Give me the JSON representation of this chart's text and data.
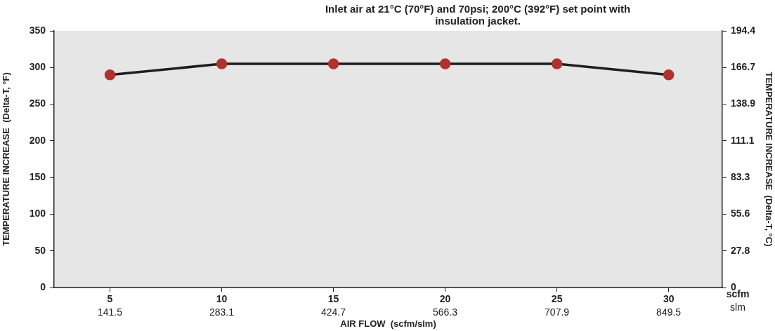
{
  "chart_data": {
    "type": "line",
    "title": "Inlet air at 21°C (70°F) and 70psi;  200°C (392°F) set point with insulation jacket.",
    "xlabel": "AIR FLOW  (scfm/slm)",
    "ylabel": "TEMPERATURE INCREASE  (Delta-T, °F)",
    "y2label": "TEMPERATURE INCREASE  (Delta-T, °C)",
    "x": [
      5,
      10,
      15,
      20,
      25,
      30
    ],
    "series": [
      {
        "color": "#1e1e1e",
        "colors": [
          "#b3302e",
          "#b3302e",
          "#b3302e",
          "#b3302e",
          "#b3302e",
          "#b3302e"
        ],
        "values": [
          290,
          305,
          305,
          305,
          305,
          290
        ]
      }
    ],
    "xlim": [
      2.5,
      32.4
    ],
    "xticks": [
      5,
      10,
      15,
      20,
      25,
      30
    ],
    "x2lim": [
      70.8,
      917.5
    ],
    "x2ticks": [
      141.5,
      283.1,
      424.7,
      566.3,
      707.9,
      849.5
    ],
    "ylim": [
      0,
      350
    ],
    "yticks": [
      0,
      50,
      100,
      150,
      200,
      250,
      300,
      350
    ],
    "y2lim": [
      0,
      194.4
    ],
    "y2ticks": [
      0,
      27.8,
      55.6,
      83.3,
      111.1,
      138.9,
      166.7,
      194.4
    ],
    "annotations": [
      "scfm",
      "slm"
    ],
    "grid": false,
    "legend": false,
    "marker": "circle",
    "line_style": "solid"
  }
}
